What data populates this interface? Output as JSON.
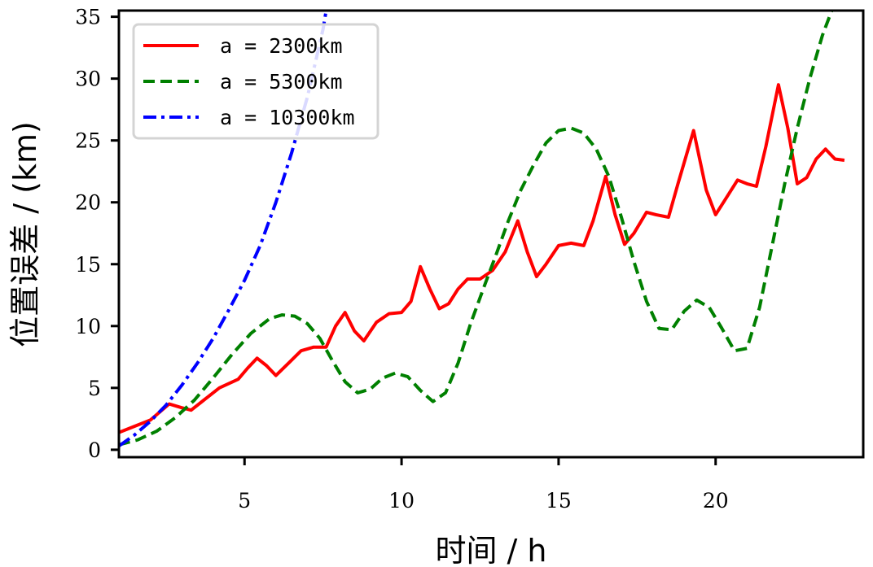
{
  "chart_data": {
    "type": "line",
    "xlabel": "时间 / h",
    "ylabel": "位置误差 / (km)",
    "xlim": [
      1,
      24.7
    ],
    "ylim": [
      -0.6,
      35.5
    ],
    "xticks": [
      5,
      10,
      15,
      20
    ],
    "yticks": [
      0,
      5,
      10,
      15,
      20,
      25,
      30,
      35
    ],
    "grid": false,
    "legend": "top-left",
    "series": [
      {
        "name": "a = 2300km",
        "color": "#ff0000",
        "style": "solid",
        "x": [
          1.0,
          1.5,
          2.0,
          2.6,
          3.0,
          3.3,
          3.7,
          4.2,
          4.8,
          5.1,
          5.4,
          5.7,
          6.0,
          6.4,
          6.8,
          7.2,
          7.6,
          7.9,
          8.2,
          8.5,
          8.8,
          9.2,
          9.6,
          10.0,
          10.3,
          10.6,
          10.9,
          11.2,
          11.5,
          11.8,
          12.1,
          12.5,
          12.9,
          13.3,
          13.7,
          14.0,
          14.3,
          14.6,
          15.0,
          15.4,
          15.8,
          16.1,
          16.5,
          16.8,
          17.1,
          17.4,
          17.8,
          18.1,
          18.5,
          18.8,
          19.3,
          19.7,
          20.0,
          20.3,
          20.7,
          21.0,
          21.3,
          21.6,
          22.0,
          22.3,
          22.6,
          22.9,
          23.2,
          23.5,
          23.8,
          24.1
        ],
        "y": [
          1.4,
          1.9,
          2.4,
          3.7,
          3.4,
          3.2,
          4.0,
          5.0,
          5.7,
          6.6,
          7.4,
          6.8,
          6.0,
          7.0,
          8.0,
          8.3,
          8.3,
          10.0,
          11.1,
          9.6,
          8.8,
          10.3,
          11.0,
          11.1,
          12.0,
          14.8,
          13.0,
          11.4,
          11.8,
          13.0,
          13.8,
          13.8,
          14.5,
          16.0,
          18.5,
          16.0,
          14.0,
          15.0,
          16.5,
          16.7,
          16.5,
          18.5,
          22.1,
          19.0,
          16.6,
          17.5,
          19.2,
          19.0,
          18.8,
          21.5,
          25.8,
          21.0,
          19.0,
          20.2,
          21.8,
          21.5,
          21.3,
          24.5,
          29.5,
          26.0,
          21.5,
          22.0,
          23.5,
          24.3,
          23.5,
          23.4
        ]
      },
      {
        "name": "a = 5300km",
        "color": "#008000",
        "style": "dashed",
        "x": [
          1.0,
          1.6,
          2.2,
          2.8,
          3.4,
          4.0,
          4.6,
          5.2,
          5.8,
          6.2,
          6.6,
          7.0,
          7.4,
          7.8,
          8.2,
          8.6,
          9.0,
          9.4,
          9.8,
          10.2,
          10.6,
          11.0,
          11.4,
          11.8,
          12.2,
          12.6,
          13.0,
          13.4,
          13.8,
          14.2,
          14.6,
          15.0,
          15.4,
          15.8,
          16.2,
          16.6,
          17.0,
          17.4,
          17.8,
          18.2,
          18.6,
          19.0,
          19.4,
          19.8,
          20.2,
          20.6,
          21.0,
          21.4,
          21.8,
          22.2,
          22.6,
          23.0,
          23.4,
          23.7
        ],
        "y": [
          0.4,
          0.8,
          1.5,
          2.6,
          4.0,
          5.8,
          7.7,
          9.4,
          10.6,
          10.9,
          10.8,
          10.2,
          9.0,
          7.2,
          5.5,
          4.6,
          4.9,
          5.8,
          6.2,
          5.9,
          4.8,
          3.9,
          4.6,
          7.0,
          10.2,
          13.0,
          15.7,
          18.5,
          21.0,
          23.0,
          24.8,
          25.8,
          26.0,
          25.6,
          24.3,
          22.1,
          18.8,
          15.2,
          12.0,
          9.8,
          9.7,
          11.2,
          12.1,
          11.5,
          9.8,
          8.0,
          8.2,
          11.5,
          16.5,
          21.5,
          26.0,
          30.0,
          33.5,
          35.5
        ]
      },
      {
        "name": "a = 10300km",
        "color": "#0000ff",
        "style": "dashdot",
        "x": [
          1.0,
          1.5,
          2.0,
          2.5,
          3.0,
          3.5,
          4.0,
          4.5,
          5.0,
          5.5,
          6.0,
          6.5,
          7.0,
          7.5,
          7.6
        ],
        "y": [
          0.3,
          1.2,
          2.3,
          3.6,
          5.2,
          7.0,
          9.0,
          11.3,
          13.7,
          16.5,
          20.0,
          24.0,
          28.5,
          34.0,
          35.5
        ]
      }
    ]
  }
}
